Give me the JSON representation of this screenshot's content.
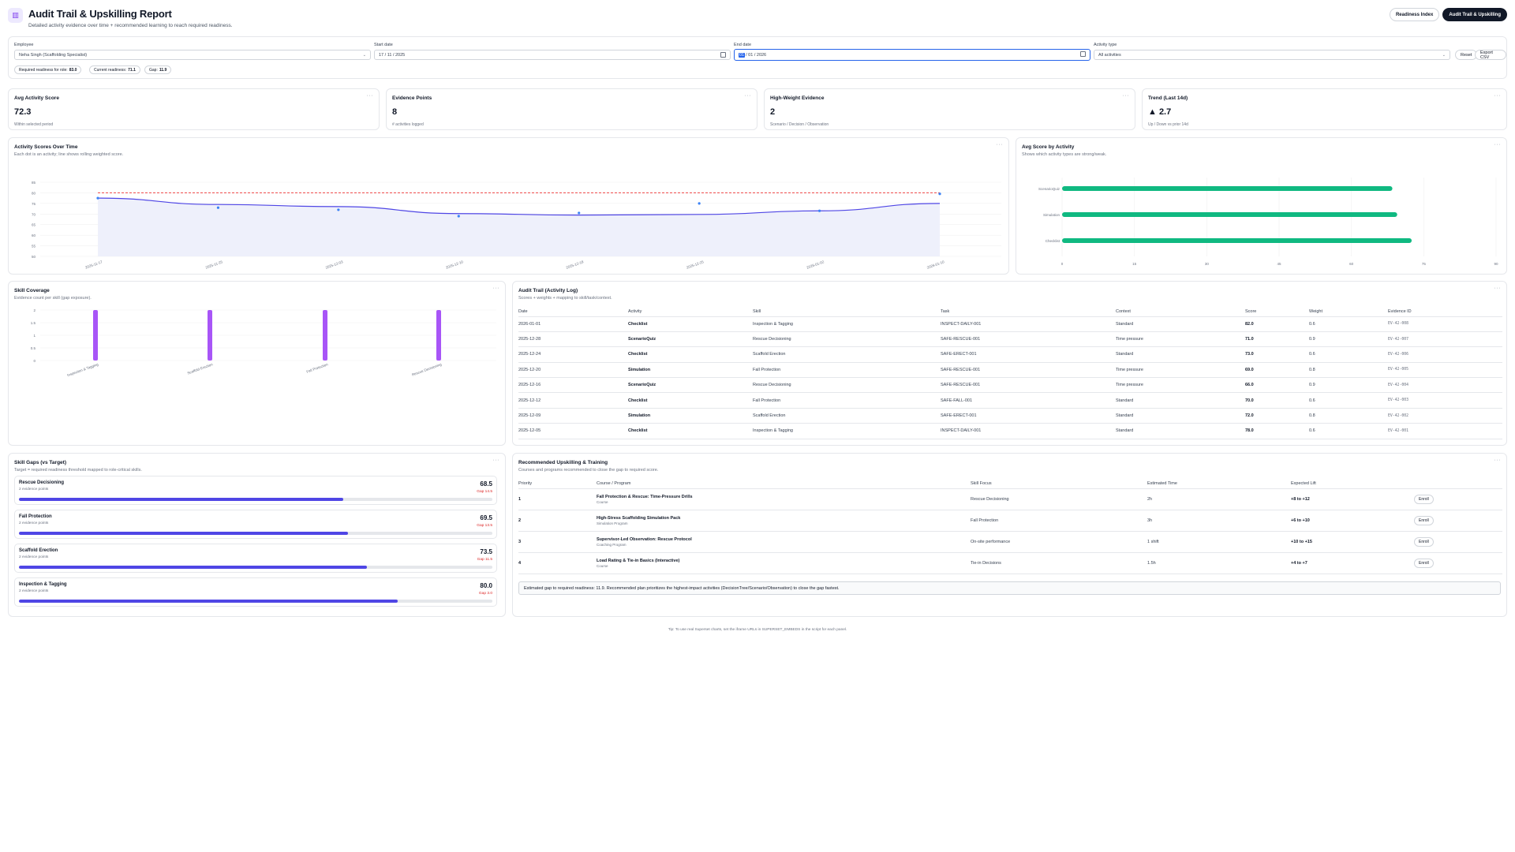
{
  "header": {
    "title": "Audit Trail & Upskilling Report",
    "subtitle": "Detailed activity evidence over time + recommended learning to reach required readiness.",
    "btn_readiness": "Readiness Index",
    "btn_audit": "Audit Trail & Upskilling"
  },
  "filters": {
    "employee_label": "Employee",
    "employee_value": "Neha Singh (Scaffolding Specialist)",
    "start_label": "Start date",
    "start_value": "17 / 11 / 2025",
    "end_label": "End date",
    "end_value_hl": "01",
    "end_value_rest": "/ 01 / 2026",
    "type_label": "Activity type",
    "type_value": "All activities",
    "reset": "Reset",
    "export": "Export CSV",
    "chip_req_label": "Required readiness for role:",
    "chip_req_value": "83.0",
    "chip_cur_label": "Current readiness:",
    "chip_cur_value": "71.1",
    "chip_gap_label": "Gap:",
    "chip_gap_value": "11.9"
  },
  "kpis": [
    {
      "title": "Avg Activity Score",
      "value": "72.3",
      "caption": "Within selected period"
    },
    {
      "title": "Evidence Points",
      "value": "8",
      "caption": "# activities logged"
    },
    {
      "title": "High-Weight Evidence",
      "value": "2",
      "caption": "Scenario / Decision / Observation"
    },
    {
      "title": "Trend (Last 14d)",
      "value": "▲ 2.7",
      "caption": "Up / Down vs prior 14d"
    }
  ],
  "menu_dots": "···",
  "scores_panel": {
    "title": "Activity Scores Over Time",
    "subtitle": "Each dot is an activity; line shows rolling weighted score."
  },
  "avg_panel": {
    "title": "Avg Score by Activity",
    "subtitle": "Shows which activity types are strong/weak."
  },
  "coverage_panel": {
    "title": "Skill Coverage",
    "subtitle": "Evidence count per skill (gap exposure)."
  },
  "audit_panel": {
    "title": "Audit Trail (Activity Log)",
    "subtitle": "Scores + weights + mapping to skill/task/context."
  },
  "gaps_panel": {
    "title": "Skill Gaps (vs Target)",
    "subtitle": "Target = required readiness threshold mapped to role-critical skills."
  },
  "rec_panel": {
    "title": "Recommended Upskilling & Training",
    "subtitle": "Courses and programs recommended to close the gap to required score."
  },
  "chart_data": [
    {
      "type": "line",
      "title": "Activity Scores Over Time",
      "x": [
        "2025-11-17",
        "2025-11-25",
        "2025-12-03",
        "2025-12-10",
        "2025-12-18",
        "2025-12-25",
        "2026-01-02",
        "2026-01-10"
      ],
      "yticks": [
        "50",
        "55",
        "60",
        "65",
        "70",
        "75",
        "80",
        "85"
      ],
      "ylim": [
        50,
        85
      ],
      "series": [
        {
          "values": [
            77.5,
            74.5,
            73.5,
            70.2,
            69.5,
            69.8,
            71.5,
            75.0
          ]
        }
      ],
      "points": [
        {
          "x": 0.0,
          "y": 77.5
        },
        {
          "x": 1.0,
          "y": 73.0
        },
        {
          "x": 2.0,
          "y": 72.0
        },
        {
          "x": 3.0,
          "y": 69.0
        },
        {
          "x": 4.0,
          "y": 70.5
        },
        {
          "x": 5.0,
          "y": 75.0
        },
        {
          "x": 6.0,
          "y": 71.5
        },
        {
          "x": 7.0,
          "y": 79.5
        }
      ],
      "required": 80.0,
      "grid": true
    },
    {
      "type": "bar",
      "title": "Avg Score by Activity",
      "orientation": "horizontal",
      "categories": [
        "ScenarioQuiz",
        "Simulation",
        "Checklist"
      ],
      "values": [
        68.5,
        69.5,
        72.5
      ],
      "xticks": [
        "0",
        "15",
        "30",
        "45",
        "60",
        "75",
        "90"
      ],
      "xlim": [
        0,
        90
      ],
      "color": "#10b981"
    },
    {
      "type": "bar",
      "title": "Skill Coverage",
      "categories": [
        "Inspection & Tagging",
        "Scaffold Erection",
        "Fall Protection",
        "Rescue Decisioning"
      ],
      "values": [
        2,
        2,
        2,
        2
      ],
      "yticks": [
        "0",
        "0.5",
        "1",
        "1.5",
        "2"
      ],
      "ylim": [
        0,
        2
      ],
      "color": "#a855f7"
    }
  ],
  "audit": {
    "columns": [
      "Date",
      "Activity",
      "Skill",
      "Task",
      "Context",
      "Score",
      "Weight",
      "Evidence ID"
    ],
    "rows": [
      [
        "2026-01-01",
        "Checklist",
        "Inspection & Tagging",
        "INSPECT-DAILY-001",
        "Standard",
        "82.0",
        "0.6",
        "EV-42-008"
      ],
      [
        "2025-12-28",
        "ScenarioQuiz",
        "Rescue Decisioning",
        "SAFE-RESCUE-001",
        "Time pressure",
        "71.0",
        "0.9",
        "EV-42-007"
      ],
      [
        "2025-12-24",
        "Checklist",
        "Scaffold Erection",
        "SAFE-ERECT-001",
        "Standard",
        "73.0",
        "0.6",
        "EV-42-006"
      ],
      [
        "2025-12-20",
        "Simulation",
        "Fall Protection",
        "SAFE-RESCUE-001",
        "Time pressure",
        "69.0",
        "0.8",
        "EV-42-005"
      ],
      [
        "2025-12-16",
        "ScenarioQuiz",
        "Rescue Decisioning",
        "SAFE-RESCUE-001",
        "Time pressure",
        "66.0",
        "0.9",
        "EV-42-004"
      ],
      [
        "2025-12-12",
        "Checklist",
        "Fall Protection",
        "SAFE-FALL-001",
        "Standard",
        "70.0",
        "0.6",
        "EV-42-003"
      ],
      [
        "2025-12-09",
        "Simulation",
        "Scaffold Erection",
        "SAFE-ERECT-001",
        "Standard",
        "72.0",
        "0.8",
        "EV-42-002"
      ],
      [
        "2025-12-05",
        "Checklist",
        "Inspection & Tagging",
        "INSPECT-DAILY-001",
        "Standard",
        "78.0",
        "0.6",
        "EV-42-001"
      ]
    ]
  },
  "gaps": [
    {
      "name": "Rescue Decisioning",
      "sub": "2 evidence points",
      "value": "68.5",
      "gap": "Gap 14.5",
      "progress": 0.685
    },
    {
      "name": "Fall Protection",
      "sub": "2 evidence points",
      "value": "69.5",
      "gap": "Gap 13.5",
      "progress": 0.695
    },
    {
      "name": "Scaffold Erection",
      "sub": "2 evidence points",
      "value": "73.5",
      "gap": "Gap 11.5",
      "progress": 0.735
    },
    {
      "name": "Inspection & Tagging",
      "sub": "2 evidence points",
      "value": "80.0",
      "gap": "Gap 3.0",
      "progress": 0.8
    }
  ],
  "recs": {
    "columns": [
      "Priority",
      "Course / Program",
      "Skill Focus",
      "Estimated Time",
      "Expected Lift",
      ""
    ],
    "rows": [
      {
        "priority": "1",
        "course": "Fall Protection & Rescue: Time-Pressure Drills",
        "type": "Course",
        "skill": "Rescue Decisioning",
        "time": "2h",
        "lift": "+8 to +12",
        "action": "Enroll"
      },
      {
        "priority": "2",
        "course": "High-Stress Scaffolding Simulation Pack",
        "type": "Simulation Program",
        "skill": "Fall Protection",
        "time": "3h",
        "lift": "+6 to +10",
        "action": "Enroll"
      },
      {
        "priority": "3",
        "course": "Supervisor-Led Observation: Rescue Protocol",
        "type": "Coaching Program",
        "skill": "On-site performance",
        "time": "1 shift",
        "lift": "+10 to +15",
        "action": "Enroll"
      },
      {
        "priority": "4",
        "course": "Load Rating & Tie-in Basics (Interactive)",
        "type": "Course",
        "skill": "Tie-in Decisions",
        "time": "1.5h",
        "lift": "+4 to +7",
        "action": "Enroll"
      }
    ],
    "note": "Estimated gap to required readiness: 11.9. Recommended plan prioritizes the highest-impact activities (DecisionTree/Scenario/Observation) to close the gap fastest."
  },
  "footer": "Tip: To use real Superset charts, set the iframe URLs in SUPERSET_EMBEDS in the script for each panel.",
  "colors": {
    "accent": "#4f46e5",
    "line": "#4f46e5",
    "dot": "#3b82f6",
    "required": "#ef4444",
    "bar_green": "#10b981",
    "bar_purple": "#a855f7",
    "gap_red": "#dc2626"
  }
}
